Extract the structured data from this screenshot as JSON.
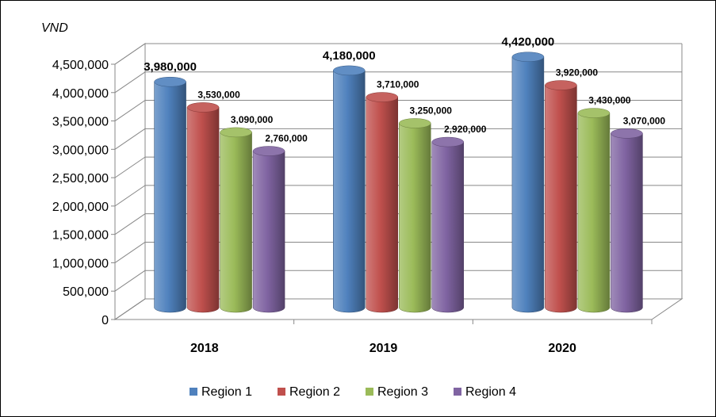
{
  "chart_data": {
    "type": "bar",
    "three_d": true,
    "ylabel": "VND",
    "ylim": [
      0,
      4500000
    ],
    "ytick_step": 500000,
    "yticks": [
      "0",
      "500,000",
      "1,000,000",
      "1,500,000",
      "2,000,000",
      "2,500,000",
      "3,000,000",
      "3,500,000",
      "4,000,000",
      "4,500,000"
    ],
    "categories": [
      "2018",
      "2019",
      "2020"
    ],
    "series": [
      {
        "name": "Region 1",
        "color": "#4F81BD",
        "values": [
          3980000,
          4180000,
          4420000
        ],
        "labels": [
          "3,980,000",
          "4,180,000",
          "4,420,000"
        ]
      },
      {
        "name": "Region 2",
        "color": "#C0504D",
        "values": [
          3530000,
          3710000,
          3920000
        ],
        "labels": [
          "3,530,000",
          "3,710,000",
          "3,920,000"
        ]
      },
      {
        "name": "Region 3",
        "color": "#9BBB59",
        "values": [
          3090000,
          3250000,
          3430000
        ],
        "labels": [
          "3,090,000",
          "3,250,000",
          "3,430,000"
        ]
      },
      {
        "name": "Region 4",
        "color": "#8064A2",
        "values": [
          2760000,
          2920000,
          3070000
        ],
        "labels": [
          "2,760,000",
          "2,920,000",
          "3,070,000"
        ]
      }
    ],
    "grid": true,
    "legend": "bottom"
  }
}
